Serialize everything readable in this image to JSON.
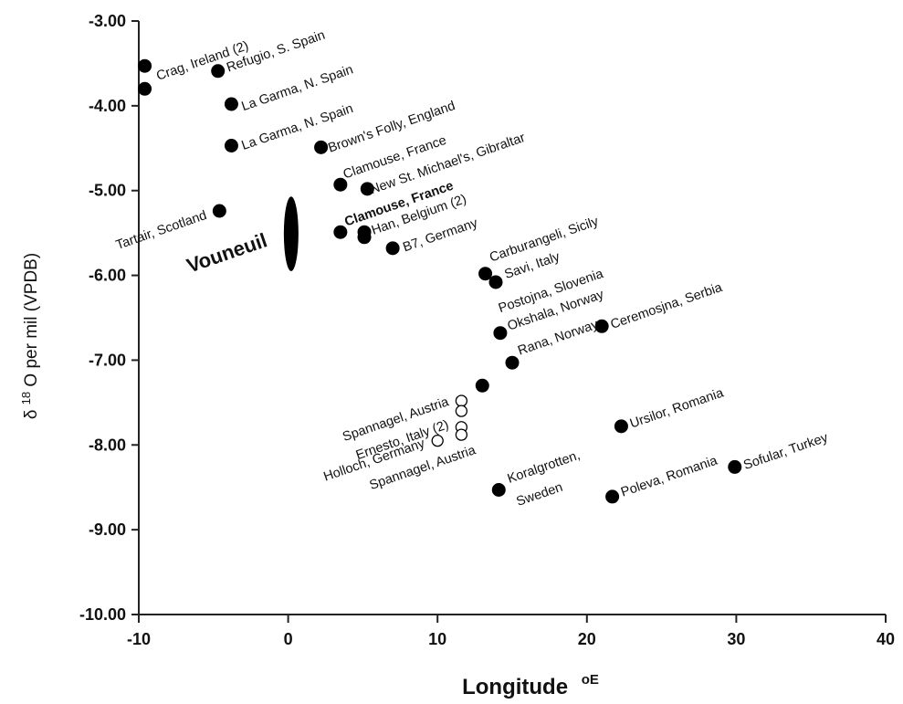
{
  "chart_data": {
    "type": "scatter",
    "xlabel": "Longitude",
    "xlabel_unit": "oE",
    "ylabel_prefix": "δ",
    "ylabel_sup": "18",
    "ylabel_rest": "O per mil (VPDB)",
    "xlim": [
      -10,
      40
    ],
    "ylim": [
      -10,
      -3
    ],
    "x_ticks": [
      -10,
      0,
      10,
      20,
      30,
      40
    ],
    "x_tick_labels": [
      "-10",
      "0",
      "10",
      "20",
      "30",
      "40"
    ],
    "y_ticks": [
      -3,
      -4,
      -5,
      -6,
      -7,
      -8,
      -9,
      -10
    ],
    "y_tick_labels": [
      "-3.00",
      "-4.00",
      "-5.00",
      "-6.00",
      "-7.00",
      "-8.00",
      "-9.00",
      "-10.00"
    ],
    "grid": false,
    "vouneuil": {
      "label": "Vouneuil",
      "x": 0.2,
      "y_top": -5.07,
      "y_bottom": -5.95
    },
    "points": [
      {
        "x": -9.6,
        "y": -3.53,
        "filled": true
      },
      {
        "x": -9.6,
        "y": -3.8,
        "filled": true
      },
      {
        "x": -4.7,
        "y": -3.59,
        "filled": true
      },
      {
        "x": -3.8,
        "y": -3.98,
        "filled": true
      },
      {
        "x": -3.8,
        "y": -4.47,
        "filled": true
      },
      {
        "x": 2.2,
        "y": -4.49,
        "filled": true
      },
      {
        "x": 3.5,
        "y": -4.93,
        "filled": true
      },
      {
        "x": 5.3,
        "y": -4.98,
        "filled": true
      },
      {
        "x": -4.6,
        "y": -5.24,
        "filled": true
      },
      {
        "x": 3.5,
        "y": -5.49,
        "filled": true
      },
      {
        "x": 5.1,
        "y": -5.49,
        "filled": true
      },
      {
        "x": 5.1,
        "y": -5.55,
        "filled": true
      },
      {
        "x": 7.0,
        "y": -5.68,
        "filled": true
      },
      {
        "x": 13.2,
        "y": -5.98,
        "filled": true
      },
      {
        "x": 13.9,
        "y": -6.08,
        "filled": true
      },
      {
        "x": 14.2,
        "y": -6.68,
        "filled": true
      },
      {
        "x": 21.0,
        "y": -6.6,
        "filled": true
      },
      {
        "x": 15.0,
        "y": -7.03,
        "filled": true
      },
      {
        "x": 13.0,
        "y": -7.3,
        "filled": true
      },
      {
        "x": 11.6,
        "y": -7.48,
        "filled": false
      },
      {
        "x": 11.6,
        "y": -7.6,
        "filled": false
      },
      {
        "x": 11.6,
        "y": -7.79,
        "filled": false
      },
      {
        "x": 11.6,
        "y": -7.88,
        "filled": false
      },
      {
        "x": 10.0,
        "y": -7.95,
        "filled": false
      },
      {
        "x": 22.3,
        "y": -7.78,
        "filled": true
      },
      {
        "x": 14.1,
        "y": -8.53,
        "filled": true
      },
      {
        "x": 21.7,
        "y": -8.61,
        "filled": true
      },
      {
        "x": 29.9,
        "y": -8.26,
        "filled": true
      }
    ],
    "labels": [
      {
        "text": "Crag, Ireland (2)",
        "x": -8.7,
        "y": -3.7,
        "angle": -19,
        "anchor": "start",
        "bold": false
      },
      {
        "text": "Refugio, S. Spain",
        "x": -4.0,
        "y": -3.6,
        "angle": -19,
        "anchor": "start",
        "bold": false
      },
      {
        "text": "La Garma, N. Spain",
        "x": -3.0,
        "y": -4.06,
        "angle": -19,
        "anchor": "start",
        "bold": false
      },
      {
        "text": "La Garma, N. Spain",
        "x": -3.0,
        "y": -4.52,
        "angle": -19,
        "anchor": "start",
        "bold": false
      },
      {
        "text": "Brown's Folly, England",
        "x": 2.8,
        "y": -4.55,
        "angle": -19,
        "anchor": "start",
        "bold": false
      },
      {
        "text": "Clamouse, France",
        "x": 3.8,
        "y": -4.86,
        "angle": -19,
        "anchor": "start",
        "bold": false
      },
      {
        "text": "New St. Michael's, Gibraltar",
        "x": 5.6,
        "y": -5.04,
        "angle": -19,
        "anchor": "start",
        "bold": false
      },
      {
        "text": "Tartair, Scotland",
        "x": -5.4,
        "y": -5.33,
        "angle": -19,
        "anchor": "end",
        "bold": false
      },
      {
        "text": "Clamouse, France",
        "x": 3.9,
        "y": -5.42,
        "angle": -19,
        "anchor": "start",
        "bold": true
      },
      {
        "text": "Han, Belgium (2)",
        "x": 5.7,
        "y": -5.52,
        "angle": -19,
        "anchor": "start",
        "bold": false
      },
      {
        "text": "B7, Germany",
        "x": 7.8,
        "y": -5.72,
        "angle": -19,
        "anchor": "start",
        "bold": false
      },
      {
        "text": "Carburangeli, Sicily",
        "x": 13.6,
        "y": -5.84,
        "angle": -19,
        "anchor": "start",
        "bold": false
      },
      {
        "text": "Savi, Italy",
        "x": 14.6,
        "y": -6.04,
        "angle": -19,
        "anchor": "start",
        "bold": false
      },
      {
        "text": "Postojna, Slovenia",
        "x": 14.2,
        "y": -6.44,
        "angle": -19,
        "anchor": "start",
        "bold": false
      },
      {
        "text": "Okshala, Norway",
        "x": 14.8,
        "y": -6.65,
        "angle": -19,
        "anchor": "start",
        "bold": false
      },
      {
        "text": "Ceremosjna, Serbia",
        "x": 21.7,
        "y": -6.63,
        "angle": -19,
        "anchor": "start",
        "bold": false
      },
      {
        "text": "Rana, Norway",
        "x": 15.5,
        "y": -6.94,
        "angle": -19,
        "anchor": "start",
        "bold": false
      },
      {
        "text": "Spannagel, Austria",
        "x": 10.8,
        "y": -7.53,
        "angle": -19,
        "anchor": "end",
        "bold": false
      },
      {
        "text": "Ernesto, Italy (2)",
        "x": 10.8,
        "y": -7.8,
        "angle": -19,
        "anchor": "end",
        "bold": false
      },
      {
        "text": "Holloch, Germany",
        "x": 9.2,
        "y": -8.02,
        "angle": -19,
        "anchor": "end",
        "bold": false
      },
      {
        "text": "Spannagel, Austria",
        "x": 12.6,
        "y": -8.1,
        "angle": -19,
        "anchor": "end",
        "bold": false
      },
      {
        "text": "Ursilor, Romania",
        "x": 23.0,
        "y": -7.8,
        "angle": -19,
        "anchor": "start",
        "bold": false
      },
      {
        "text": "Koralgrotten,",
        "x": 14.8,
        "y": -8.45,
        "angle": -19,
        "anchor": "start",
        "bold": false
      },
      {
        "text": "Sweden",
        "x": 15.4,
        "y": -8.72,
        "angle": -19,
        "anchor": "start",
        "bold": false
      },
      {
        "text": "Poleva, Romania",
        "x": 22.4,
        "y": -8.61,
        "angle": -19,
        "anchor": "start",
        "bold": false
      },
      {
        "text": "Sofular, Turkey",
        "x": 30.6,
        "y": -8.29,
        "angle": -19,
        "anchor": "start",
        "bold": false
      }
    ]
  }
}
